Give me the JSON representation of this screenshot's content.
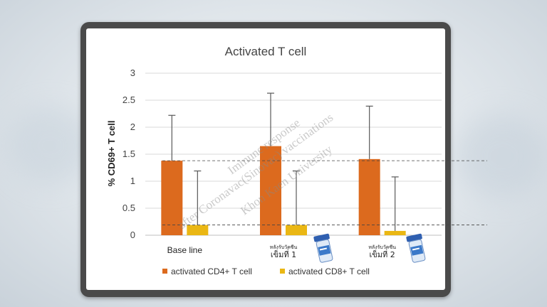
{
  "colors": {
    "cd4": "#dc6a1e",
    "cd8": "#eab714",
    "grid": "#d9d9d9",
    "error": "#595959"
  },
  "chart_data": {
    "type": "bar",
    "title": "Activated T cell",
    "ylabel": "% CD69+ T cell",
    "xlabel": "",
    "ylim": [
      0,
      3
    ],
    "yticks": [
      "0",
      "0.5",
      "1",
      "1.5",
      "2",
      "2.5",
      "3"
    ],
    "grid": true,
    "legend_placement": "bottom",
    "categories": [
      "Base line",
      "หลังรับวัคซีน เข็มที่ 1",
      "หลังรับวัคซีน เข็มที่ 2"
    ],
    "category_labels": [
      {
        "line1": "Base line",
        "line2": ""
      },
      {
        "line1": "หลังรับวัคซีน",
        "line2": "เข็มที่ 1"
      },
      {
        "line1": "หลังรับวัคซีน",
        "line2": "เข็มที่ 2"
      }
    ],
    "series": [
      {
        "name": "activated CD4+ T cell",
        "values": [
          1.38,
          1.65,
          1.41
        ],
        "error": [
          0.84,
          0.98,
          0.98
        ],
        "color_key": "cd4"
      },
      {
        "name": "activated CD8+ T cell",
        "values": [
          0.19,
          0.19,
          0.08
        ],
        "error": [
          1.0,
          1.0,
          1.0
        ],
        "color_key": "cd8"
      }
    ],
    "reference_lines": [
      1.38,
      0.19
    ]
  },
  "watermark": {
    "line1": "Immune response",
    "line2": "after Coronavac(Sinovac) vaccinations",
    "line3": "Khon Kaen University"
  },
  "icons": [
    "vaccine-vial-icon",
    "vaccine-vial-icon"
  ]
}
